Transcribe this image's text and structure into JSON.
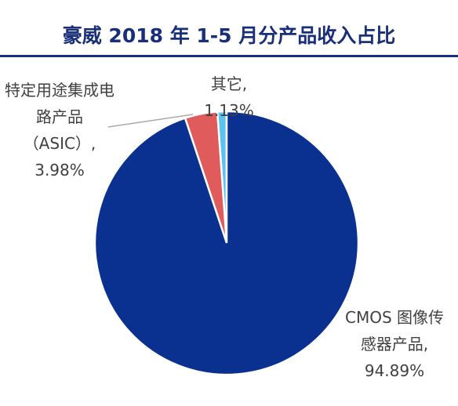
{
  "chart_data": {
    "type": "pie",
    "title": "豪威 2018 年 1-5 月分产品收入占比",
    "categories": [
      "CMOS 图像传感器产品,",
      "特定用途集成电路产品（ASIC）,",
      "其它,"
    ],
    "values": [
      94.89,
      3.98,
      1.13
    ],
    "value_labels": [
      "94.89%",
      "3.98%",
      "1.13%"
    ],
    "colors": [
      "#0b3190",
      "#e05c5c",
      "#5bc4ee"
    ]
  }
}
